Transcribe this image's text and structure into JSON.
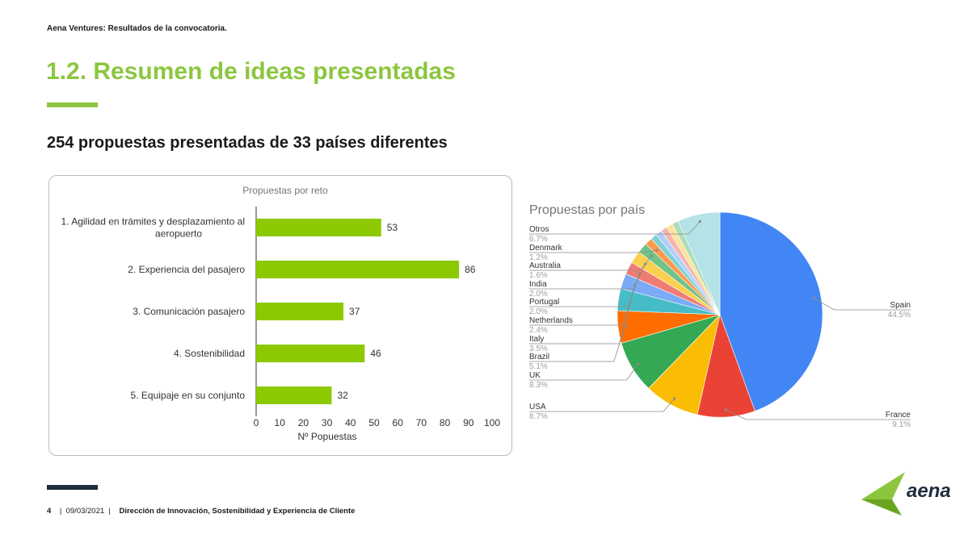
{
  "header": {
    "text": "Aena Ventures: Resultados de la convocatoria."
  },
  "title": "1.2. Resumen de ideas presentadas",
  "subtitle": "254 propuestas presentadas de 33 países diferentes",
  "footer": {
    "page": "4",
    "date": "09/03/2021",
    "department": "Dirección de Innovación, Sostenibilidad y Experiencia de Cliente"
  },
  "logo": {
    "text": "aena",
    "icon": "aena-wing-icon"
  },
  "colors": {
    "accent": "#8cc63f",
    "dark": "#1f2d3d",
    "bar": "#8cc900"
  },
  "chart_data": [
    {
      "type": "bar",
      "orientation": "horizontal",
      "title": "Propuestas por reto",
      "xlabel": "Nº Popuestas",
      "categories": [
        [
          "1. Agilidad en trámites y desplazamiento al",
          "aeropuerto"
        ],
        [
          "2. Experiencia del pasajero"
        ],
        [
          "3. Comunicación pasajero"
        ],
        [
          "4. Sostenibilidad"
        ],
        [
          "5. Equipaje en su conjunto"
        ]
      ],
      "values": [
        53,
        86,
        37,
        46,
        32
      ],
      "xlim": [
        0,
        100
      ],
      "xticks": [
        0,
        10,
        20,
        30,
        40,
        50,
        60,
        70,
        80,
        90,
        100
      ],
      "grid": false,
      "color": "#8cc900"
    },
    {
      "type": "pie",
      "title": "Propuestas por país",
      "slices": [
        {
          "label": "Spain",
          "pct": "44.5%",
          "value": 44.5,
          "color": "#4285f4"
        },
        {
          "label": "France",
          "pct": "9.1%",
          "value": 9.1,
          "color": "#ea4335"
        },
        {
          "label": "USA",
          "pct": "8.7%",
          "value": 8.7,
          "color": "#fbbc04"
        },
        {
          "label": "UK",
          "pct": "8.3%",
          "value": 8.3,
          "color": "#34a853"
        },
        {
          "label": "Brazil",
          "pct": "5.1%",
          "value": 5.1,
          "color": "#ff6d01"
        },
        {
          "label": "Italy",
          "pct": "3.5%",
          "value": 3.5,
          "color": "#46bdc6"
        },
        {
          "label": "Netherlands",
          "pct": "2.4%",
          "value": 2.4,
          "color": "#7baaf7"
        },
        {
          "label": "Portugal",
          "pct": "2.0%",
          "value": 2.0,
          "color": "#f07b72"
        },
        {
          "label": "India",
          "pct": "2.0%",
          "value": 2.0,
          "color": "#fcd04f"
        },
        {
          "label": "Australia",
          "pct": "1.6%",
          "value": 1.6,
          "color": "#71c287"
        },
        {
          "label": "Denmark",
          "pct": "1.2%",
          "value": 1.2,
          "color": "#ff994d"
        },
        {
          "label": "",
          "pct": "",
          "value": 1.0,
          "color": "#7ed1d7"
        },
        {
          "label": "",
          "pct": "",
          "value": 1.0,
          "color": "#b3cefb"
        },
        {
          "label": "",
          "pct": "",
          "value": 1.0,
          "color": "#f7b4ae"
        },
        {
          "label": "",
          "pct": "",
          "value": 1.0,
          "color": "#fde49b"
        },
        {
          "label": "",
          "pct": "",
          "value": 1.0,
          "color": "#aedcba"
        },
        {
          "label": "Otros",
          "pct": "6.7%",
          "value": 6.7,
          "color": "#b4e3e7"
        }
      ]
    }
  ]
}
